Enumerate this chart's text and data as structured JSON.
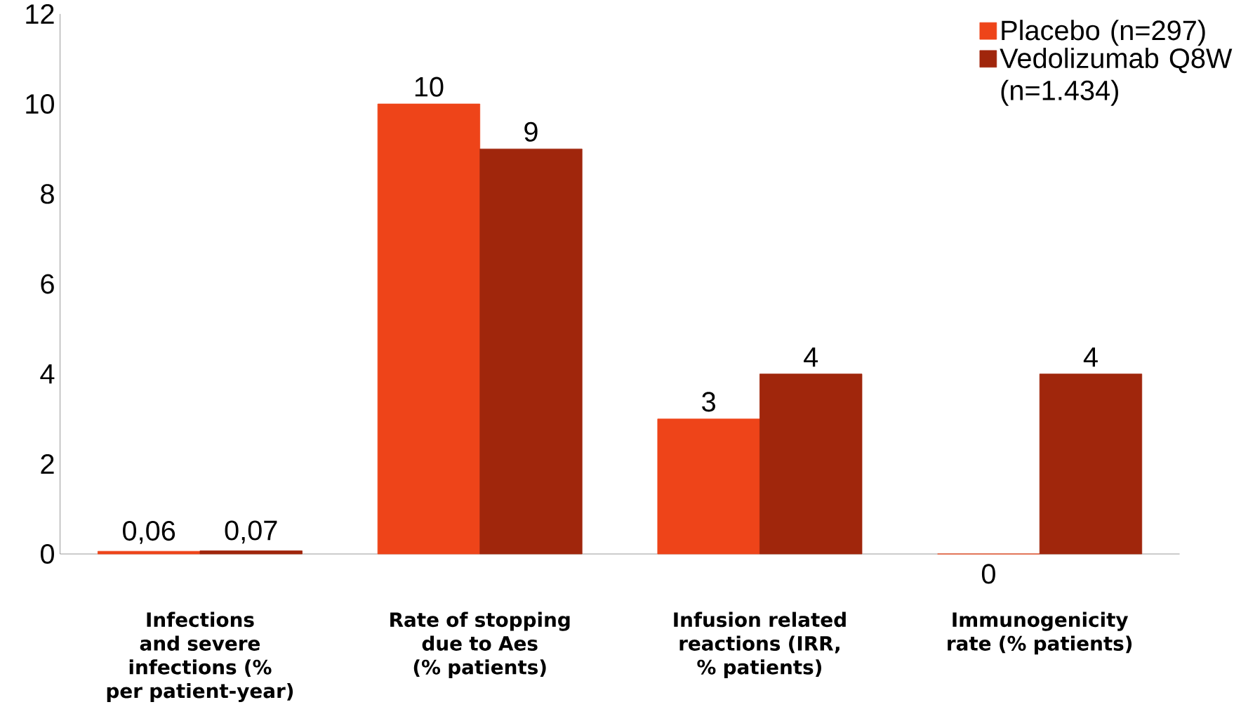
{
  "chart_data": {
    "type": "bar",
    "categories": [
      "Infections and severe infections (% per patient-year)",
      "Rate of stopping due to Aes (% patients)",
      "Infusion related reactions (IRR, % patients)",
      "Immunogenicity rate (% patients)"
    ],
    "series": [
      {
        "name": "Placebo (n=297)",
        "color": "#ee4419",
        "values": [
          0.06,
          10,
          3,
          0
        ],
        "value_labels": [
          "0,06",
          "10",
          "3",
          "0"
        ]
      },
      {
        "name": "Vedolizumab Q8W (n=1.434)",
        "color": "#a0260c",
        "values": [
          0.07,
          9,
          4,
          4
        ],
        "value_labels": [
          "0,07",
          "9",
          "4",
          "4"
        ]
      }
    ],
    "ylim": [
      0,
      12
    ],
    "yticks": [
      0,
      2,
      4,
      6,
      8,
      10,
      12
    ],
    "grid": false,
    "legend": "top right"
  }
}
